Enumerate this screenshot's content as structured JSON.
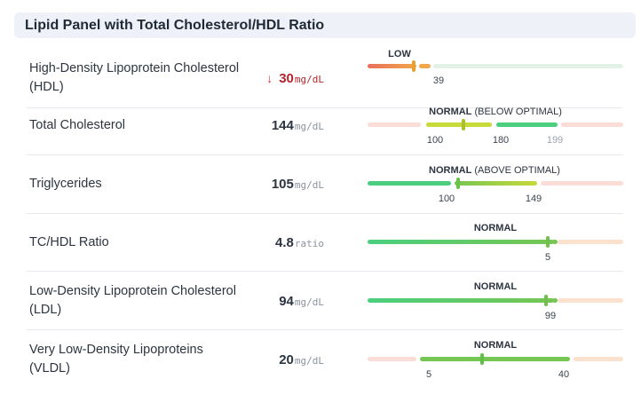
{
  "panel": {
    "title": "Lipid Panel with Total Cholesterol/HDL Ratio"
  },
  "rows": [
    {
      "name": "High-Density Lipoprotein Cholesterol (HDL)",
      "value": "30",
      "unit": "mg/dL",
      "flag": "low",
      "status": "LOW",
      "status_detail": "",
      "ticks": [
        "39"
      ]
    },
    {
      "name": "Total Cholesterol",
      "value": "144",
      "unit": "mg/dL",
      "flag": "normal",
      "status": "NORMAL",
      "status_detail": " (BELOW OPTIMAL)",
      "ticks": [
        "100",
        "180",
        "199"
      ]
    },
    {
      "name": "Triglycerides",
      "value": "105",
      "unit": "mg/dL",
      "flag": "normal",
      "status": "NORMAL",
      "status_detail": " (ABOVE OPTIMAL)",
      "ticks": [
        "100",
        "149"
      ]
    },
    {
      "name": "TC/HDL Ratio",
      "value": "4.8",
      "unit": "ratio",
      "flag": "normal",
      "status": "NORMAL",
      "status_detail": "",
      "ticks": [
        "5"
      ]
    },
    {
      "name": "Low-Density Lipoprotein Cholesterol (LDL)",
      "value": "94",
      "unit": "mg/dL",
      "flag": "normal",
      "status": "NORMAL",
      "status_detail": "",
      "ticks": [
        "99"
      ]
    },
    {
      "name": "Very Low-Density Lipoproteins (VLDL)",
      "value": "20",
      "unit": "mg/dL",
      "flag": "normal",
      "status": "NORMAL",
      "status_detail": "",
      "ticks": [
        "5",
        "40"
      ]
    }
  ],
  "colors": {
    "low_red": "#e86f5a",
    "low_orange": "#f2a64a",
    "faint_green": "#e3f2e6",
    "faint_pink": "#fbdcd6",
    "yellow_green": "#c8d93a",
    "green": "#4bcf7f",
    "mid_green": "#76c653",
    "flag_red": "#b4232b"
  },
  "icons": {
    "low_flag": "arrow-down-icon"
  }
}
